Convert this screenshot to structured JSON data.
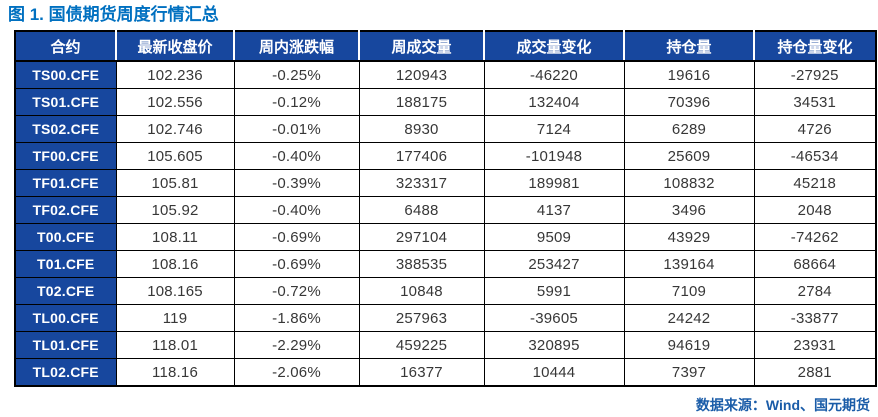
{
  "title": "图 1. 国债期货周度行情汇总",
  "footer": {
    "source_label": "数据来源：Wind、国元期货"
  },
  "colors": {
    "header_bg": "#17479E",
    "header_text": "#FFFFFF",
    "title_text": "#0070C0",
    "source_text": "#1A5CA8",
    "body_text": "#373737",
    "grid_border": "#000000"
  },
  "chart_data": {
    "type": "table",
    "title": "图 1. 国债期货周度行情汇总",
    "columns": [
      "合约",
      "最新收盘价",
      "周内涨跌幅",
      "周成交量",
      "成交量变化",
      "持仓量",
      "持仓量变化"
    ],
    "rows": [
      [
        "TS00.CFE",
        "102.236",
        "-0.25%",
        "120943",
        "-46220",
        "19616",
        "-27925"
      ],
      [
        "TS01.CFE",
        "102.556",
        "-0.12%",
        "188175",
        "132404",
        "70396",
        "34531"
      ],
      [
        "TS02.CFE",
        "102.746",
        "-0.01%",
        "8930",
        "7124",
        "6289",
        "4726"
      ],
      [
        "TF00.CFE",
        "105.605",
        "-0.40%",
        "177406",
        "-101948",
        "25609",
        "-46534"
      ],
      [
        "TF01.CFE",
        "105.81",
        "-0.39%",
        "323317",
        "189981",
        "108832",
        "45218"
      ],
      [
        "TF02.CFE",
        "105.92",
        "-0.40%",
        "6488",
        "4137",
        "3496",
        "2048"
      ],
      [
        "T00.CFE",
        "108.11",
        "-0.69%",
        "297104",
        "9509",
        "43929",
        "-74262"
      ],
      [
        "T01.CFE",
        "108.16",
        "-0.69%",
        "388535",
        "253427",
        "139164",
        "68664"
      ],
      [
        "T02.CFE",
        "108.165",
        "-0.72%",
        "10848",
        "5991",
        "7109",
        "2784"
      ],
      [
        "TL00.CFE",
        "119",
        "-1.86%",
        "257963",
        "-39605",
        "24242",
        "-33877"
      ],
      [
        "TL01.CFE",
        "118.01",
        "-2.29%",
        "459225",
        "320895",
        "94619",
        "23931"
      ],
      [
        "TL02.CFE",
        "118.16",
        "-2.06%",
        "16377",
        "10444",
        "7397",
        "2881"
      ]
    ]
  }
}
